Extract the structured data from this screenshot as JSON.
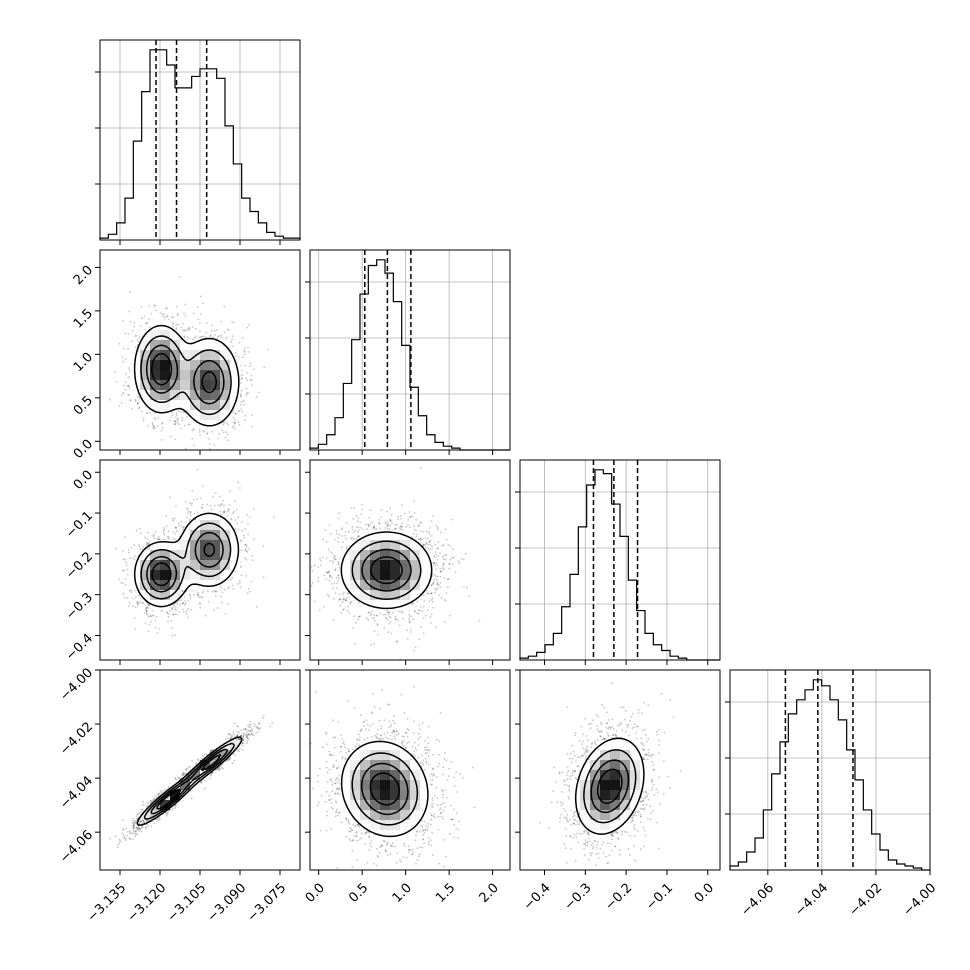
{
  "chart_data": {
    "type": "corner",
    "parameters": [
      {
        "range": [
          -3.1425,
          -3.0675
        ],
        "ticks": [
          -3.135,
          -3.12,
          -3.105,
          -3.09,
          -3.075
        ],
        "tick_labels": [
          "−3.135",
          "−3.120",
          "−3.105",
          "−3.090",
          "−3.075"
        ],
        "quantiles": [
          -3.1215,
          -3.1138,
          -3.1025
        ],
        "hist": [
          1,
          3,
          9,
          22,
          52,
          78,
          100,
          100,
          92,
          80,
          80,
          86,
          90,
          90,
          85,
          60,
          40,
          22,
          15,
          9,
          4,
          2,
          1,
          1
        ]
      },
      {
        "range": [
          -0.1,
          2.2
        ],
        "ticks": [
          0.0,
          0.5,
          1.0,
          1.5,
          2.0
        ],
        "tick_labels": [
          "0.0",
          "0.5",
          "1.0",
          "1.5",
          "2.0"
        ],
        "quantiles": [
          0.53,
          0.79,
          1.06
        ],
        "hist": [
          1,
          3,
          8,
          17,
          35,
          58,
          82,
          97,
          100,
          93,
          78,
          55,
          33,
          18,
          8,
          4,
          2,
          1,
          0,
          0,
          0,
          0,
          0,
          0
        ]
      },
      {
        "range": [
          -0.46,
          0.03
        ],
        "ticks": [
          -0.4,
          -0.3,
          -0.2,
          -0.1,
          0.0
        ],
        "tick_labels": [
          "−0.4",
          "−0.3",
          "−0.2",
          "−0.1",
          "0.0"
        ],
        "quantiles": [
          -0.28,
          -0.23,
          -0.172
        ],
        "hist": [
          1,
          2,
          4,
          8,
          14,
          28,
          45,
          70,
          92,
          100,
          98,
          82,
          65,
          42,
          26,
          14,
          8,
          5,
          2,
          1,
          0,
          0,
          0,
          0
        ]
      },
      {
        "range": [
          -4.074,
          -4.0
        ],
        "ticks": [
          -4.06,
          -4.04,
          -4.02,
          -4.0
        ],
        "tick_labels": [
          "−4.06",
          "−4.04",
          "−4.02",
          "−4.00"
        ],
        "quantiles": [
          -4.0535,
          -4.0415,
          -4.0285
        ],
        "hist": [
          2,
          4,
          9,
          16,
          30,
          48,
          64,
          78,
          85,
          90,
          95,
          92,
          85,
          75,
          60,
          45,
          30,
          18,
          10,
          5,
          3,
          2,
          1,
          0
        ]
      }
    ],
    "blobs": [
      {
        "row": 1,
        "col": 0,
        "peaks": [
          [
            -3.1195,
            0.83,
            0.0048,
            0.24,
            0,
            1.0
          ],
          [
            -3.1015,
            0.68,
            0.0055,
            0.25,
            0,
            0.85
          ]
        ]
      },
      {
        "row": 2,
        "col": 0,
        "peaks": [
          [
            -3.1195,
            -0.25,
            0.0048,
            0.038,
            0,
            1.0
          ],
          [
            -3.1015,
            -0.19,
            0.0055,
            0.045,
            0,
            0.82
          ]
        ]
      },
      {
        "row": 2,
        "col": 1,
        "peaks": [
          [
            0.78,
            -0.24,
            0.25,
            0.045,
            0,
            1.0
          ]
        ]
      },
      {
        "row": 3,
        "col": 0,
        "peaks": [
          [
            -3.117,
            -4.048,
            0.0055,
            0.0045,
            0.93,
            1.0
          ],
          [
            -3.1005,
            -4.034,
            0.0055,
            0.0045,
            0.93,
            0.88
          ]
        ]
      },
      {
        "row": 3,
        "col": 1,
        "peaks": [
          [
            0.76,
            -4.044,
            0.24,
            0.0085,
            -0.12,
            1.0
          ]
        ]
      },
      {
        "row": 3,
        "col": 2,
        "peaks": [
          [
            -0.24,
            -4.043,
            0.04,
            0.0085,
            0.25,
            1.0
          ]
        ]
      }
    ],
    "grid": true,
    "legend": "none"
  }
}
